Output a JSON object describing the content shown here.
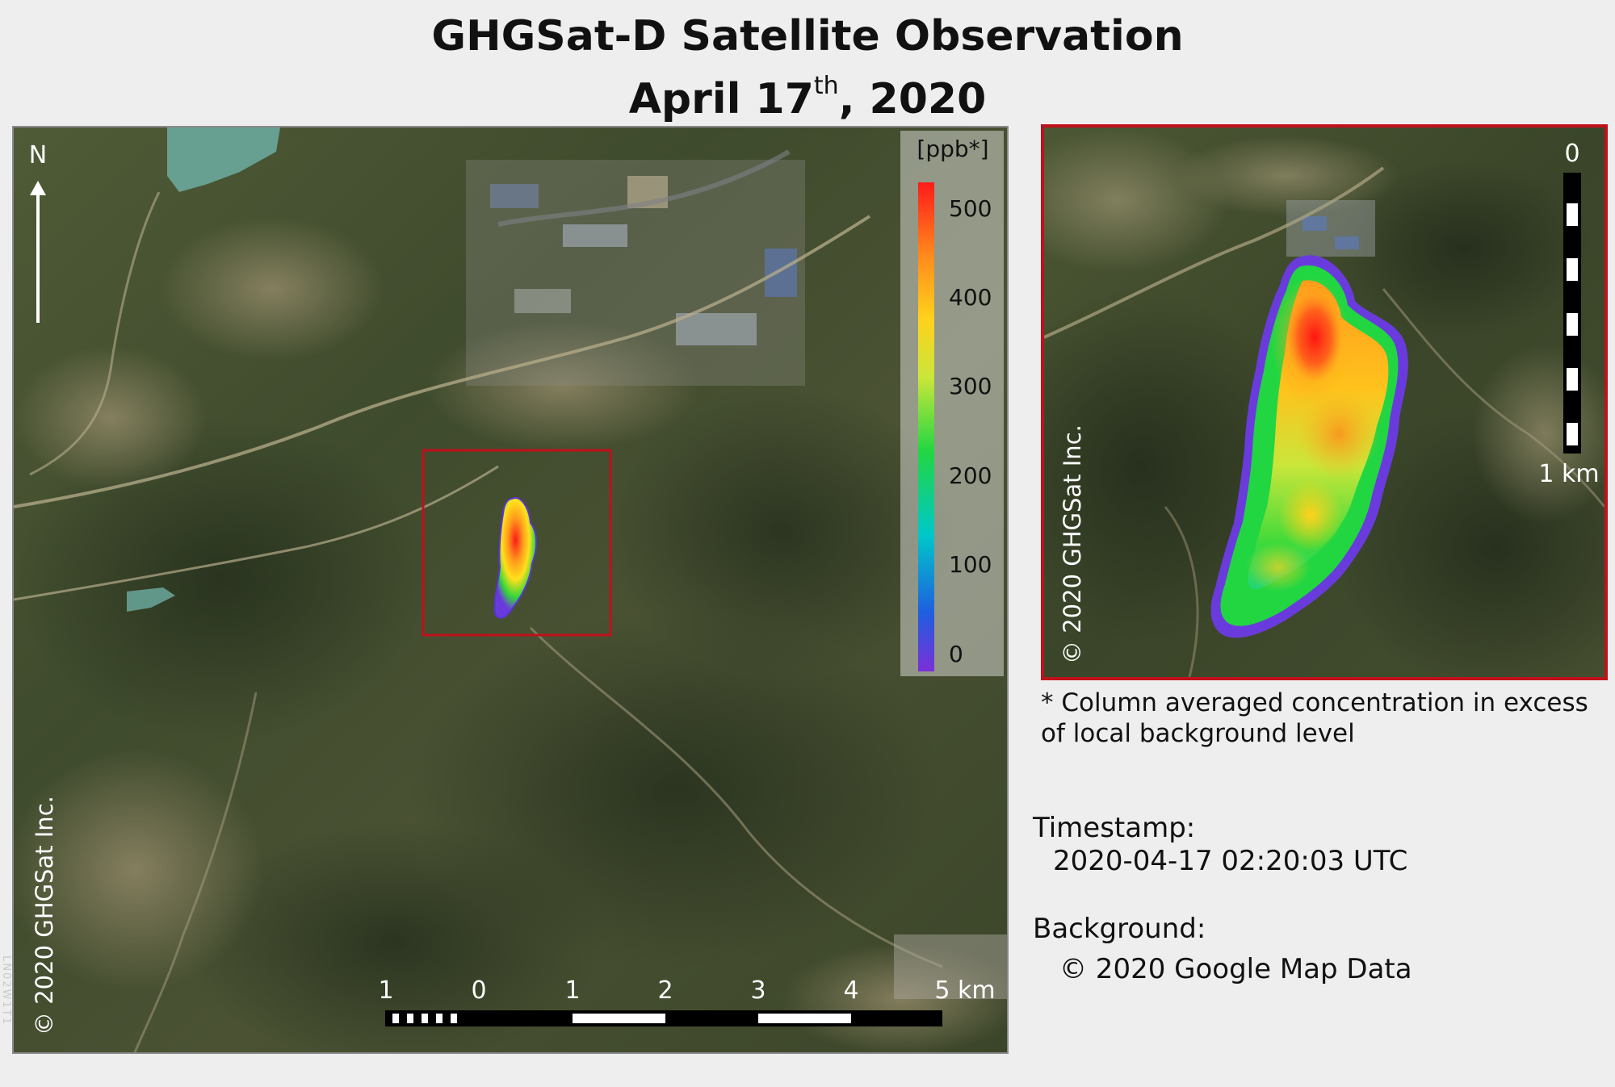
{
  "title": {
    "line1": "GHGSat-D Satellite Observation",
    "line2_prefix": "April 17",
    "line2_superscript": "th",
    "line2_suffix": ", 2020"
  },
  "main_map": {
    "north_label": "N",
    "copyright": "© 2020 GHGSat Inc.",
    "scale_bar": {
      "labels": [
        "1",
        "0",
        "1",
        "2",
        "3",
        "4",
        "5 km"
      ]
    },
    "colorbar": {
      "unit_label": "[ppb*]",
      "tick_labels": [
        "500",
        "400",
        "300",
        "200",
        "100",
        "0"
      ],
      "colormap": [
        "#7b2fd8",
        "#1f5fe0",
        "#00c8c8",
        "#22d642",
        "#c9e63a",
        "#ffd21c",
        "#ff8a1c",
        "#ff1a1a"
      ]
    },
    "highlight_box_color": "#c0111b"
  },
  "inset_map": {
    "copyright": "© 2020 GHGSat Inc.",
    "scale_bar": {
      "top_label": "0",
      "bottom_label": "1 km"
    }
  },
  "footnote": "* Column averaged concentration in excess of local background level",
  "timestamp": {
    "label": "Timestamp:",
    "value": "2020-04-17 02:20:03 UTC"
  },
  "background": {
    "label": "Background:",
    "value": "© 2020 Google Map Data"
  },
  "edge_text": "LN02W1T1"
}
